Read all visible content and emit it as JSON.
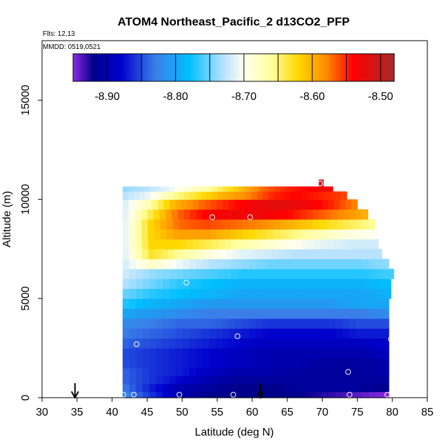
{
  "chart_data": {
    "type": "heatmap",
    "title": "ATOM4 Northeast_Pacific_2 d13CO2_PFP",
    "subtitle_flts": "Flts: 12,13",
    "subtitle_mmdd": "MMDD: 0519,0521",
    "xlabel": "Latitude (deg N)",
    "ylabel": "Altitude (m)",
    "xlim": [
      30,
      85
    ],
    "ylim": [
      0,
      18000
    ],
    "x_ticks": [
      30,
      35,
      40,
      45,
      50,
      55,
      60,
      65,
      70,
      75,
      80,
      85
    ],
    "y_ticks": [
      0,
      5000,
      10000,
      15000
    ],
    "colorbar": {
      "range": [
        -8.95,
        -8.48
      ],
      "tick_values": [
        -8.9,
        -8.8,
        -8.7,
        -8.6,
        -8.5
      ],
      "tick_labels": [
        "-8.90",
        "-8.80",
        "-8.70",
        "-8.60",
        "-8.50"
      ],
      "divider_values": [
        -8.9,
        -8.85,
        -8.8,
        -8.75,
        -8.7,
        -8.65,
        -8.6,
        -8.55,
        -8.5
      ],
      "stops": [
        {
          "v": -8.95,
          "c": "#8a2be2"
        },
        {
          "v": -8.92,
          "c": "#00008b"
        },
        {
          "v": -8.88,
          "c": "#0000cd"
        },
        {
          "v": -8.83,
          "c": "#3a7ee8"
        },
        {
          "v": -8.78,
          "c": "#00bfff"
        },
        {
          "v": -8.73,
          "c": "#b8e2ff"
        },
        {
          "v": -8.7,
          "c": "#fffff0"
        },
        {
          "v": -8.66,
          "c": "#ffff9e"
        },
        {
          "v": -8.62,
          "c": "#ffd700"
        },
        {
          "v": -8.58,
          "c": "#ff8c00"
        },
        {
          "v": -8.54,
          "c": "#ff0000"
        },
        {
          "v": -8.48,
          "c": "#a52a2a"
        }
      ]
    },
    "field_rows": [
      {
        "alt": 0,
        "lat_min": 41.5,
        "lat_max": 79.5,
        "v": [
          -8.82,
          -8.86,
          -8.9,
          -8.92,
          -8.92,
          -8.92,
          -8.92,
          -8.93,
          -8.94,
          -8.95
        ]
      },
      {
        "alt": 300,
        "lat_min": 41.5,
        "lat_max": 79.5,
        "v": [
          -8.83,
          -8.87,
          -8.9,
          -8.91,
          -8.92,
          -8.92,
          -8.91,
          -8.91,
          -8.91,
          -8.92
        ]
      },
      {
        "alt": 700,
        "lat_min": 41.5,
        "lat_max": 79.5,
        "v": [
          -8.84,
          -8.86,
          -8.88,
          -8.9,
          -8.91,
          -8.91,
          -8.91,
          -8.91,
          -8.91,
          -8.91
        ]
      },
      {
        "alt": 1100,
        "lat_min": 41.5,
        "lat_max": 79.5,
        "v": [
          -8.84,
          -8.86,
          -8.87,
          -8.89,
          -8.9,
          -8.9,
          -8.91,
          -8.91,
          -8.91,
          -8.9
        ]
      },
      {
        "alt": 1500,
        "lat_min": 41.5,
        "lat_max": 79.5,
        "v": [
          -8.85,
          -8.86,
          -8.87,
          -8.88,
          -8.89,
          -8.9,
          -8.9,
          -8.91,
          -8.91,
          -8.9
        ]
      },
      {
        "alt": 2000,
        "lat_min": 41.5,
        "lat_max": 79.5,
        "v": [
          -8.85,
          -8.86,
          -8.87,
          -8.88,
          -8.89,
          -8.9,
          -8.9,
          -8.9,
          -8.9,
          -8.89
        ]
      },
      {
        "alt": 2500,
        "lat_min": 41.5,
        "lat_max": 79.5,
        "v": [
          -8.84,
          -8.85,
          -8.86,
          -8.87,
          -8.88,
          -8.89,
          -8.89,
          -8.89,
          -8.89,
          -8.88
        ]
      },
      {
        "alt": 3000,
        "lat_min": 41.5,
        "lat_max": 79.5,
        "v": [
          -8.83,
          -8.84,
          -8.85,
          -8.86,
          -8.87,
          -8.88,
          -8.88,
          -8.88,
          -8.87,
          -8.87
        ]
      },
      {
        "alt": 3500,
        "lat_min": 41.5,
        "lat_max": 79.5,
        "v": [
          -8.82,
          -8.83,
          -8.84,
          -8.84,
          -8.85,
          -8.86,
          -8.86,
          -8.86,
          -8.85,
          -8.85
        ]
      },
      {
        "alt": 4000,
        "lat_min": 41.5,
        "lat_max": 79.5,
        "v": [
          -8.8,
          -8.81,
          -8.82,
          -8.83,
          -8.83,
          -8.83,
          -8.83,
          -8.83,
          -8.83,
          -8.82
        ]
      },
      {
        "alt": 4500,
        "lat_min": 41.5,
        "lat_max": 79.5,
        "v": [
          -8.77,
          -8.79,
          -8.8,
          -8.81,
          -8.81,
          -8.81,
          -8.81,
          -8.81,
          -8.8,
          -8.8
        ]
      },
      {
        "alt": 5000,
        "lat_min": 41.5,
        "lat_max": 79.8,
        "v": [
          -8.75,
          -8.77,
          -8.78,
          -8.79,
          -8.8,
          -8.8,
          -8.8,
          -8.8,
          -8.8,
          -8.79
        ]
      },
      {
        "alt": 5500,
        "lat_min": 41.5,
        "lat_max": 79.8,
        "v": [
          -8.73,
          -8.75,
          -8.77,
          -8.78,
          -8.79,
          -8.79,
          -8.79,
          -8.79,
          -8.79,
          -8.78
        ]
      },
      {
        "alt": 6000,
        "lat_min": 41.5,
        "lat_max": 80.2,
        "v": [
          -8.72,
          -8.74,
          -8.75,
          -8.76,
          -8.77,
          -8.77,
          -8.77,
          -8.77,
          -8.77,
          -8.76
        ]
      },
      {
        "alt": 6500,
        "lat_min": 41.5,
        "lat_max": 79.5,
        "v": [
          -8.72,
          -8.68,
          -8.71,
          -8.73,
          -8.74,
          -8.75,
          -8.75,
          -8.75,
          -8.75,
          -8.74
        ]
      },
      {
        "alt": 7000,
        "lat_min": 41.5,
        "lat_max": 78.5,
        "v": [
          -8.72,
          -8.63,
          -8.66,
          -8.69,
          -8.71,
          -8.72,
          -8.73,
          -8.73,
          -8.73,
          -8.73
        ]
      },
      {
        "alt": 7500,
        "lat_min": 41.5,
        "lat_max": 78.0,
        "v": [
          -8.72,
          -8.62,
          -8.62,
          -8.64,
          -8.66,
          -8.68,
          -8.7,
          -8.71,
          -8.72,
          -8.72
        ]
      },
      {
        "alt": 8000,
        "lat_min": 41.5,
        "lat_max": 77.5,
        "v": [
          -8.72,
          -8.62,
          -8.59,
          -8.59,
          -8.61,
          -8.63,
          -8.65,
          -8.67,
          -8.69,
          -8.7
        ]
      },
      {
        "alt": 8500,
        "lat_min": 41.5,
        "lat_max": 77.5,
        "v": [
          -8.72,
          -8.62,
          -8.57,
          -8.56,
          -8.57,
          -8.58,
          -8.6,
          -8.62,
          -8.64,
          -8.66
        ]
      },
      {
        "alt": 9000,
        "lat_min": 41.5,
        "lat_max": 76.5,
        "v": [
          -8.72,
          -8.64,
          -8.57,
          -8.54,
          -8.53,
          -8.53,
          -8.54,
          -8.56,
          -8.58,
          -8.6
        ]
      },
      {
        "alt": 9500,
        "lat_min": 41.5,
        "lat_max": 75.0,
        "v": [
          -8.72,
          -8.67,
          -8.6,
          -8.57,
          -8.55,
          -8.53,
          -8.52,
          -8.53,
          -8.55,
          -8.58
        ]
      },
      {
        "alt": 10000,
        "lat_min": 41.5,
        "lat_max": 73.5,
        "v": [
          -8.73,
          -8.71,
          -8.66,
          -8.63,
          -8.6,
          -8.58,
          -8.55,
          -8.54,
          -8.55,
          -8.56
        ]
      },
      {
        "alt": 10400,
        "lat_min": 41.5,
        "lat_max": 71.5,
        "v": [
          -8.74,
          -8.73,
          -8.71,
          -8.68,
          -8.65,
          -8.61,
          -8.57,
          -8.55,
          -8.54,
          -8.54
        ]
      }
    ],
    "field_patches": [
      {
        "lat_min": 69.5,
        "lat_max": 70.2,
        "alt_min": 10600,
        "alt_max": 11000,
        "v": -8.51
      }
    ],
    "sample_points": [
      {
        "lat": 41.6,
        "alt": 150
      },
      {
        "lat": 43.1,
        "alt": 150
      },
      {
        "lat": 49.6,
        "alt": 150
      },
      {
        "lat": 57.3,
        "alt": 150
      },
      {
        "lat": 73.9,
        "alt": 150
      },
      {
        "lat": 79.3,
        "alt": 150
      },
      {
        "lat": 73.7,
        "alt": 1300
      },
      {
        "lat": 43.5,
        "alt": 2700
      },
      {
        "lat": 79.8,
        "alt": 2950
      },
      {
        "lat": 57.9,
        "alt": 3100
      },
      {
        "lat": 50.6,
        "alt": 5800
      },
      {
        "lat": 54.3,
        "alt": 9100
      },
      {
        "lat": 59.7,
        "alt": 9100
      },
      {
        "lat": 46.5,
        "alt": 10200
      },
      {
        "lat": 69.7,
        "alt": 10800
      }
    ],
    "arrow_markers": [
      {
        "lat": 34.7
      },
      {
        "lat": 61.2
      }
    ]
  }
}
